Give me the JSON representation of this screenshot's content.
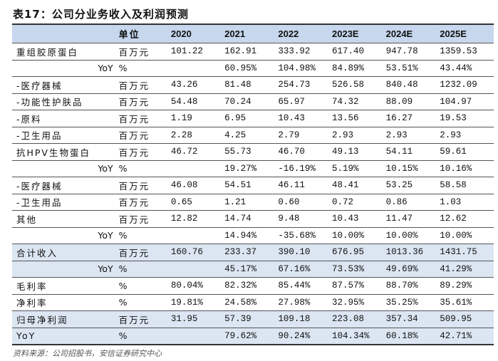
{
  "title": "表17：公司分业务收入及利润预测",
  "header": {
    "label": "",
    "unit": "单位",
    "years": [
      "2020",
      "2021",
      "2022",
      "2023E",
      "2024E",
      "2025E"
    ]
  },
  "rows": [
    {
      "label": "重组胶原蛋白",
      "unit": "百万元",
      "values": [
        "101.22",
        "162.91",
        "333.92",
        "617.40",
        "947.78",
        "1359.53"
      ],
      "yoy": false,
      "hl": false
    },
    {
      "label": "YoY",
      "unit": "%",
      "values": [
        "",
        "60.95%",
        "104.98%",
        "84.89%",
        "53.51%",
        "43.44%"
      ],
      "yoy": true,
      "hl": false
    },
    {
      "label": "-医疗器械",
      "unit": "百万元",
      "values": [
        "43.26",
        "81.48",
        "254.73",
        "526.58",
        "840.48",
        "1232.09"
      ],
      "yoy": false,
      "hl": false
    },
    {
      "label": "-功能性护肤品",
      "unit": "百万元",
      "values": [
        "54.48",
        "70.24",
        "65.97",
        "74.32",
        "88.09",
        "104.97"
      ],
      "yoy": false,
      "hl": false
    },
    {
      "label": "-原料",
      "unit": "百万元",
      "values": [
        "1.19",
        "6.95",
        "10.43",
        "13.56",
        "16.27",
        "19.53"
      ],
      "yoy": false,
      "hl": false
    },
    {
      "label": "-卫生用品",
      "unit": "百万元",
      "values": [
        "2.28",
        "4.25",
        "2.79",
        "2.93",
        "2.93",
        "2.93"
      ],
      "yoy": false,
      "hl": false
    },
    {
      "label": "抗HPV生物蛋白",
      "unit": "百万元",
      "values": [
        "46.72",
        "55.73",
        "46.70",
        "49.13",
        "54.11",
        "59.61"
      ],
      "yoy": false,
      "hl": false
    },
    {
      "label": "YoY",
      "unit": "%",
      "values": [
        "",
        "19.27%",
        "-16.19%",
        "5.19%",
        "10.15%",
        "10.16%"
      ],
      "yoy": true,
      "hl": false
    },
    {
      "label": "-医疗器械",
      "unit": "百万元",
      "values": [
        "46.08",
        "54.51",
        "46.11",
        "48.41",
        "53.25",
        "58.58"
      ],
      "yoy": false,
      "hl": false
    },
    {
      "label": "-卫生用品",
      "unit": "百万元",
      "values": [
        "0.65",
        "1.21",
        "0.60",
        "0.72",
        "0.86",
        "1.03"
      ],
      "yoy": false,
      "hl": false
    },
    {
      "label": "其他",
      "unit": "百万元",
      "values": [
        "12.82",
        "14.74",
        "9.48",
        "10.43",
        "11.47",
        "12.62"
      ],
      "yoy": false,
      "hl": false
    },
    {
      "label": "YoY",
      "unit": "%",
      "values": [
        "",
        "14.94%",
        "-35.68%",
        "10.00%",
        "10.00%",
        "10.00%"
      ],
      "yoy": true,
      "hl": false
    },
    {
      "label": "合计收入",
      "unit": "百万元",
      "values": [
        "160.76",
        "233.37",
        "390.10",
        "676.95",
        "1013.36",
        "1431.75"
      ],
      "yoy": false,
      "hl": true
    },
    {
      "label": "YoY",
      "unit": "%",
      "values": [
        "",
        "45.17%",
        "67.16%",
        "73.53%",
        "49.69%",
        "41.29%"
      ],
      "yoy": true,
      "hl": true
    },
    {
      "label": "毛利率",
      "unit": "%",
      "values": [
        "80.04%",
        "82.32%",
        "85.44%",
        "87.57%",
        "88.70%",
        "89.29%"
      ],
      "yoy": false,
      "hl": false
    },
    {
      "label": "净利率",
      "unit": "%",
      "values": [
        "19.81%",
        "24.58%",
        "27.98%",
        "32.95%",
        "35.25%",
        "35.61%"
      ],
      "yoy": false,
      "hl": false
    },
    {
      "label": "归母净利润",
      "unit": "百万元",
      "values": [
        "31.95",
        "57.39",
        "109.18",
        "223.08",
        "357.34",
        "509.95"
      ],
      "yoy": false,
      "hl": true
    },
    {
      "label": "YoY",
      "unit": "%",
      "values": [
        "",
        "79.62%",
        "90.24%",
        "104.34%",
        "60.18%",
        "42.71%"
      ],
      "yoy": false,
      "hl": true
    }
  ],
  "source": "资料来源：公司招股书，安信证券研究中心"
}
